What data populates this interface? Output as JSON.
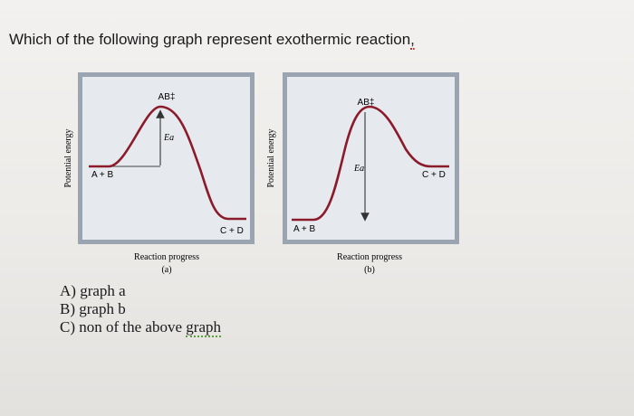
{
  "question": {
    "text": "Which of the following graph represent exothermic reaction",
    "tail": ","
  },
  "graphs": [
    {
      "id": "a",
      "y_axis_label": "Potential energy",
      "x_axis_label": "Reaction progress",
      "caption": "(a)",
      "peak_label": "AB‡",
      "ea_label": "Ea",
      "reactant_label": "A + B",
      "product_label": "C + D",
      "shape": "reactants-high-products-low"
    },
    {
      "id": "b",
      "y_axis_label": "Potential energy",
      "x_axis_label": "Reaction progress",
      "caption": "(b)",
      "peak_label": "AB‡",
      "ea_label": "Ea",
      "reactant_label": "A + B",
      "product_label": "C + D",
      "shape": "reactants-low-products-high"
    }
  ],
  "options": [
    {
      "letter": "A)",
      "text": "graph a"
    },
    {
      "letter": "B)",
      "text": "graph b"
    },
    {
      "letter": "C)",
      "text": "non of the above",
      "underlined_word": "graph"
    }
  ],
  "colors": {
    "frame": "#9aa5b1",
    "panel": "#e6eaee",
    "curve": "#8b1a2b",
    "text": "#1f1f1f"
  }
}
